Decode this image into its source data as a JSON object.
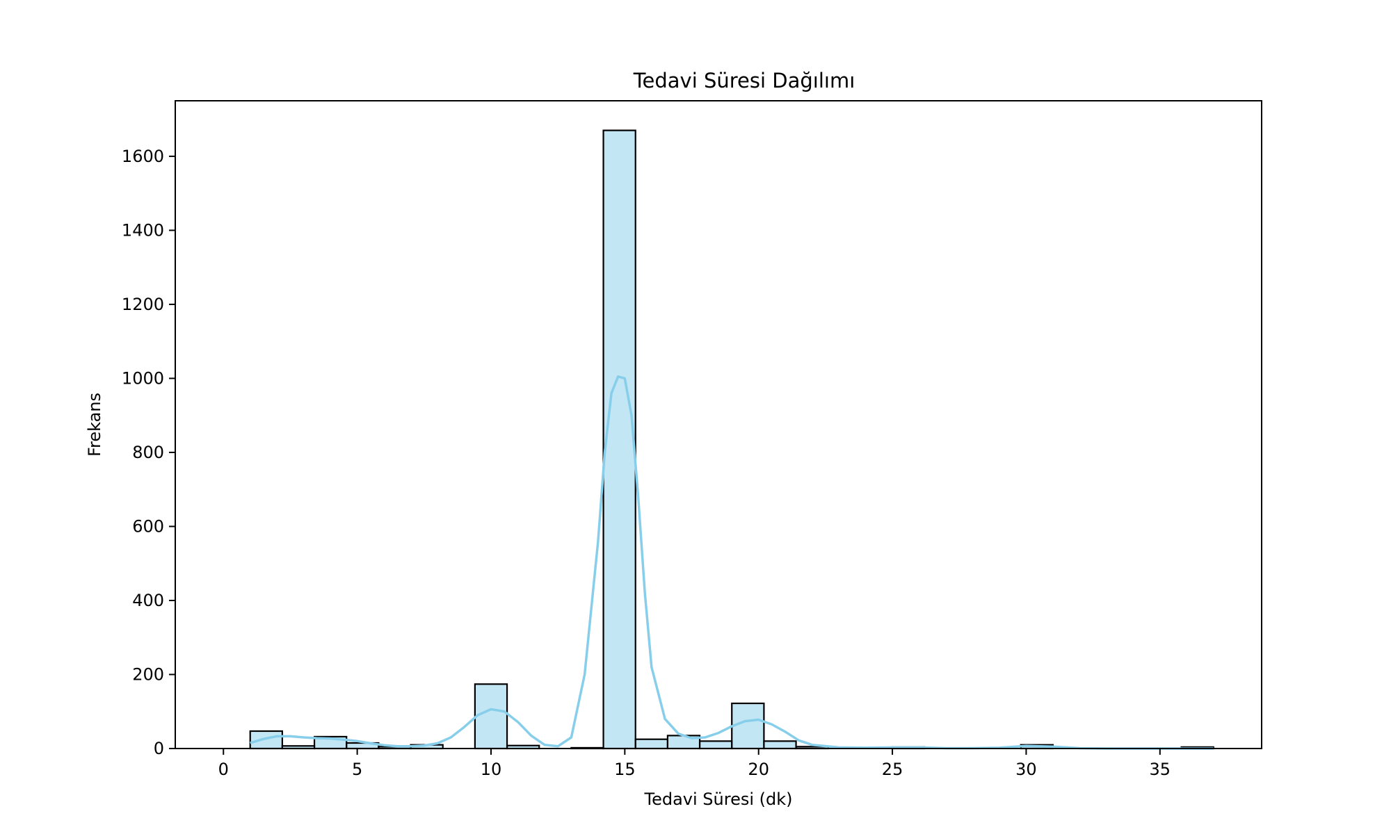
{
  "chart_data": {
    "type": "bar",
    "title": "Tedavi Süresi Dağılımı",
    "xlabel": "Tedavi Süresi (dk)",
    "ylabel": "Frekans",
    "xlim": [
      -1.8,
      38.8
    ],
    "ylim": [
      0,
      1750
    ],
    "xticks": [
      0,
      5,
      10,
      15,
      20,
      25,
      30,
      35
    ],
    "yticks": [
      0,
      200,
      400,
      600,
      800,
      1000,
      1200,
      1400,
      1600
    ],
    "grid": false,
    "bar_color": "#87ceeb",
    "bar_edge_color": "#000000",
    "kde_color": "#87ceeb",
    "bins": [
      {
        "x0": 1.0,
        "x1": 2.2,
        "value": 47
      },
      {
        "x0": 2.2,
        "x1": 3.4,
        "value": 7
      },
      {
        "x0": 3.4,
        "x1": 4.6,
        "value": 32
      },
      {
        "x0": 4.6,
        "x1": 5.8,
        "value": 15
      },
      {
        "x0": 5.8,
        "x1": 7.0,
        "value": 5
      },
      {
        "x0": 7.0,
        "x1": 8.2,
        "value": 10
      },
      {
        "x0": 8.2,
        "x1": 9.4,
        "value": 0
      },
      {
        "x0": 9.4,
        "x1": 10.6,
        "value": 174
      },
      {
        "x0": 10.6,
        "x1": 11.8,
        "value": 8
      },
      {
        "x0": 11.8,
        "x1": 13.0,
        "value": 0
      },
      {
        "x0": 13.0,
        "x1": 14.2,
        "value": 2
      },
      {
        "x0": 14.2,
        "x1": 15.4,
        "value": 1670
      },
      {
        "x0": 15.4,
        "x1": 16.6,
        "value": 25
      },
      {
        "x0": 16.6,
        "x1": 17.8,
        "value": 35
      },
      {
        "x0": 17.8,
        "x1": 19.0,
        "value": 20
      },
      {
        "x0": 19.0,
        "x1": 20.2,
        "value": 122
      },
      {
        "x0": 20.2,
        "x1": 21.4,
        "value": 20
      },
      {
        "x0": 21.4,
        "x1": 22.6,
        "value": 5
      },
      {
        "x0": 22.6,
        "x1": 23.8,
        "value": 0
      },
      {
        "x0": 23.8,
        "x1": 25.0,
        "value": 0
      },
      {
        "x0": 25.0,
        "x1": 26.2,
        "value": 4
      },
      {
        "x0": 26.2,
        "x1": 27.4,
        "value": 0
      },
      {
        "x0": 27.4,
        "x1": 28.6,
        "value": 0
      },
      {
        "x0": 28.6,
        "x1": 29.8,
        "value": 0
      },
      {
        "x0": 29.8,
        "x1": 31.0,
        "value": 10
      },
      {
        "x0": 31.0,
        "x1": 32.2,
        "value": 0
      },
      {
        "x0": 32.2,
        "x1": 33.4,
        "value": 0
      },
      {
        "x0": 33.4,
        "x1": 34.6,
        "value": 0
      },
      {
        "x0": 34.6,
        "x1": 35.8,
        "value": 0
      },
      {
        "x0": 35.8,
        "x1": 37.0,
        "value": 4
      }
    ],
    "kde": {
      "x": [
        1,
        1.5,
        2,
        2.5,
        3,
        3.5,
        4,
        4.5,
        5,
        5.5,
        6,
        6.5,
        7,
        7.5,
        8,
        8.5,
        9,
        9.5,
        10,
        10.5,
        11,
        11.5,
        12,
        12.5,
        13,
        13.5,
        14,
        14.25,
        14.5,
        14.75,
        15,
        15.25,
        15.5,
        15.75,
        16,
        16.5,
        17,
        17.5,
        18,
        18.5,
        19,
        19.5,
        20,
        20.5,
        21,
        21.5,
        22,
        23,
        24,
        25,
        26,
        27,
        28,
        29,
        30,
        31,
        32,
        33,
        34,
        35,
        36,
        37
      ],
      "y": [
        15,
        26,
        33,
        33,
        30,
        28,
        27,
        24,
        20,
        14,
        9,
        6,
        6,
        8,
        14,
        30,
        58,
        90,
        106,
        100,
        72,
        35,
        10,
        6,
        30,
        200,
        560,
        800,
        960,
        1005,
        1000,
        900,
        680,
        420,
        220,
        80,
        40,
        28,
        30,
        42,
        60,
        74,
        78,
        65,
        45,
        22,
        10,
        3,
        2,
        3,
        3,
        1,
        1,
        2,
        7,
        5,
        1,
        0,
        0,
        0,
        0,
        0
      ]
    }
  }
}
